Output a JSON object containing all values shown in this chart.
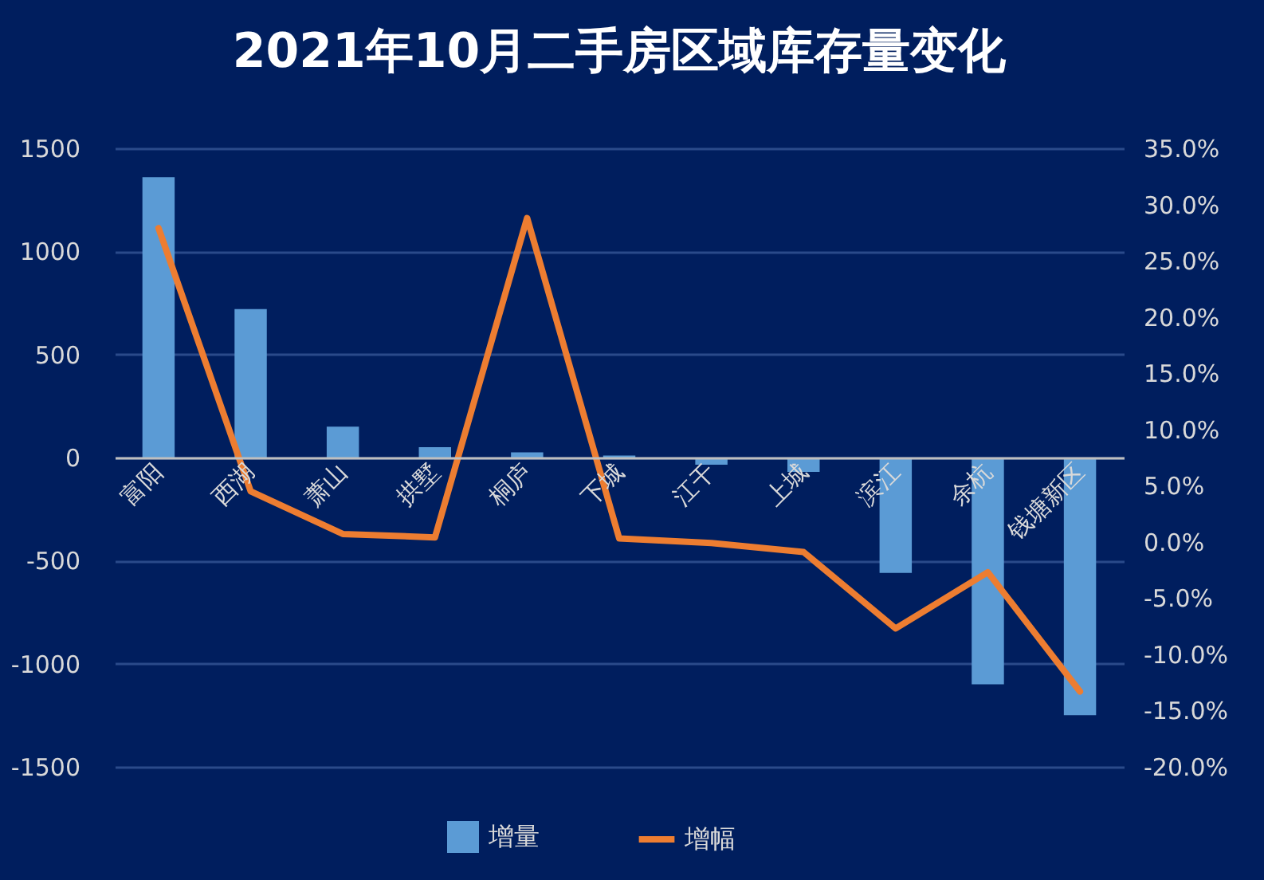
{
  "chart_data": {
    "type": "bar",
    "title": "2021年10月二手房区域库存量变化",
    "categories": [
      "富阳",
      "西湖",
      "萧山",
      "拱墅",
      "桐庐",
      "下城",
      "江干",
      "上城",
      "滨江",
      "余杭",
      "钱塘新区"
    ],
    "series": [
      {
        "name": "增量",
        "color": "#5b9bd5",
        "values": [
          1360,
          720,
          150,
          50,
          25,
          10,
          -35,
          -70,
          -560,
          -1100,
          -1250
        ]
      },
      {
        "name": "增幅",
        "type": "line",
        "axis": "y2",
        "color": "#ed7d31",
        "values": [
          27.9,
          4.5,
          0.7,
          0.4,
          28.8,
          0.3,
          -0.1,
          -0.9,
          -7.7,
          -2.7,
          -13.3
        ]
      }
    ],
    "ylim": [
      -1500,
      1500
    ],
    "yticks": [
      -1500,
      -1000,
      -500,
      0,
      500,
      1000,
      1500
    ],
    "y2lim": [
      -20,
      35
    ],
    "y2ticks": [
      {
        "value": -20,
        "label": "-20.0%"
      },
      {
        "value": -15,
        "label": "-15.0%"
      },
      {
        "value": -10,
        "label": "-10.0%"
      },
      {
        "value": -5,
        "label": "-5.0%"
      },
      {
        "value": 0,
        "label": "0.0%"
      },
      {
        "value": 5,
        "label": "5.0%"
      },
      {
        "value": 10,
        "label": "10.0%"
      },
      {
        "value": 15,
        "label": "15.0%"
      },
      {
        "value": 20,
        "label": "20.0%"
      },
      {
        "value": 25,
        "label": "25.0%"
      },
      {
        "value": 30,
        "label": "30.0%"
      },
      {
        "value": 35,
        "label": "35.0%"
      }
    ],
    "grid": "y",
    "legend": "bottom"
  }
}
